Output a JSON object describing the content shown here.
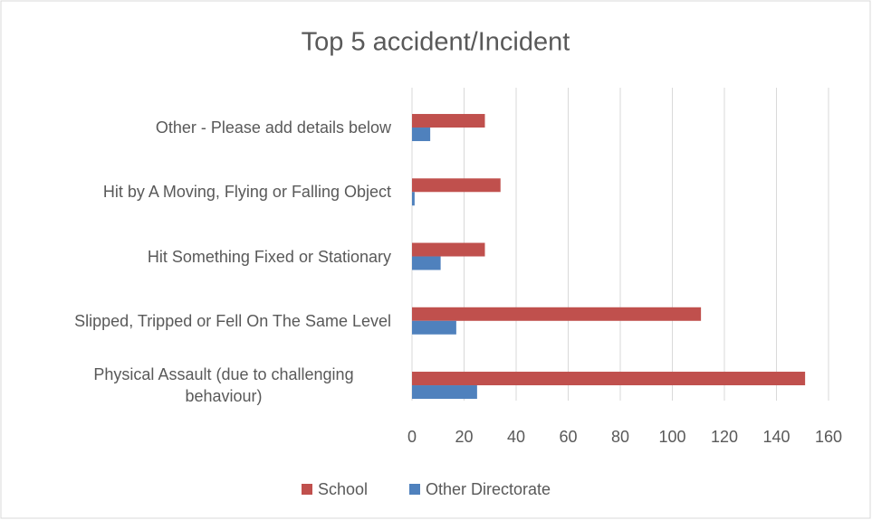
{
  "chart_data": {
    "type": "bar",
    "orientation": "horizontal",
    "title": "Top 5 accident/Incident",
    "categories": [
      "Other - Please add details below",
      "Hit by A Moving, Flying or Falling Object",
      "Hit Something Fixed or Stationary",
      "Slipped, Tripped or Fell On The Same Level",
      "Physical Assault (due to challenging behaviour)"
    ],
    "series": [
      {
        "name": "School",
        "color": "#c0504d",
        "values": [
          28,
          34,
          28,
          111,
          151
        ]
      },
      {
        "name": "Other Directorate",
        "color": "#4f81bd",
        "values": [
          7,
          1,
          11,
          17,
          25
        ]
      }
    ],
    "xlim": [
      0,
      160
    ],
    "xticks": [
      0,
      20,
      40,
      60,
      80,
      100,
      120,
      140,
      160
    ],
    "grid": true,
    "legend": "bottom"
  }
}
